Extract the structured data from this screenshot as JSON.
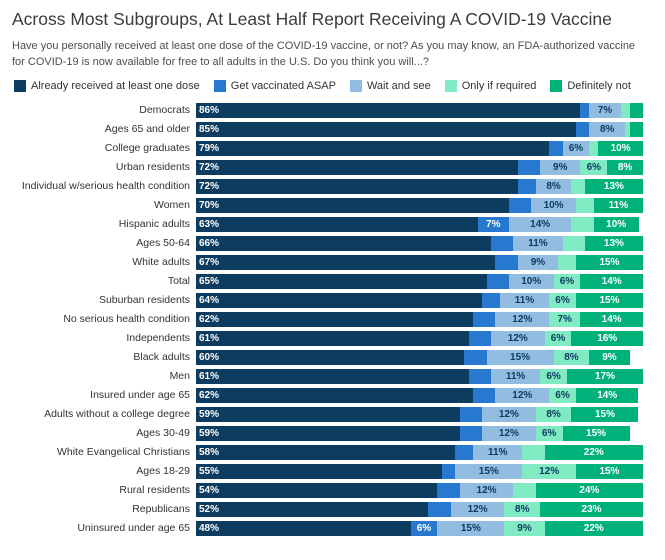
{
  "header": {
    "title": "Across Most Subgroups, At Least Half Report Receiving A COVID-19 Vaccine",
    "subtitle": "Have you personally received at least one dose of the COVID-19 vaccine, or not? As you may know, an FDA-authorized vaccine for COVID-19 is now available for free to all adults in the U.S. Do you think you will...?"
  },
  "chart_data": {
    "type": "bar",
    "orientation": "horizontal",
    "stacked": true,
    "value_format": "percent",
    "xlim": [
      0,
      100
    ],
    "grid": false,
    "legend_position": "top",
    "label_threshold": 6,
    "categories": [
      "Democrats",
      "Ages 65 and older",
      "College graduates",
      "Urban residents",
      "Individual w/serious health condition",
      "Women",
      "Hispanic adults",
      "Ages 50-64",
      "White adults",
      "Total",
      "Suburban residents",
      "No serious health condition",
      "Independents",
      "Black adults",
      "Men",
      "Insured under age 65",
      "Adults without a college degree",
      "Ages 30-49",
      "White Evangelical Christians",
      "Ages 18-29",
      "Rural residents",
      "Republicans",
      "Uninsured under age 65"
    ],
    "series": [
      {
        "name": "Already received at least one dose",
        "color": "#0c3c60",
        "text_color": "#ffffff",
        "values": [
          86,
          85,
          79,
          72,
          72,
          70,
          63,
          66,
          67,
          65,
          64,
          62,
          61,
          60,
          61,
          62,
          59,
          59,
          58,
          55,
          54,
          52,
          48
        ]
      },
      {
        "name": "Get vaccinated ASAP",
        "color": "#2779cf",
        "text_color": "#ffffff",
        "values": [
          2,
          3,
          3,
          5,
          4,
          5,
          7,
          5,
          5,
          5,
          4,
          5,
          5,
          5,
          5,
          5,
          5,
          5,
          4,
          3,
          5,
          5,
          6
        ]
      },
      {
        "name": "Wait and see",
        "color": "#92bce0",
        "text_color": "#0c3c60",
        "values": [
          7,
          8,
          6,
          9,
          8,
          10,
          14,
          11,
          9,
          10,
          11,
          12,
          12,
          15,
          11,
          12,
          12,
          12,
          11,
          15,
          12,
          12,
          15
        ]
      },
      {
        "name": "Only if required",
        "color": "#80eac2",
        "text_color": "#0c3c60",
        "values": [
          2,
          1,
          2,
          6,
          3,
          4,
          5,
          5,
          4,
          6,
          6,
          7,
          6,
          8,
          6,
          6,
          8,
          6,
          5,
          12,
          5,
          8,
          9
        ]
      },
      {
        "name": "Definitely not",
        "color": "#00b179",
        "text_color": "#ffffff",
        "values": [
          3,
          3,
          10,
          8,
          13,
          11,
          10,
          13,
          15,
          14,
          15,
          14,
          16,
          9,
          17,
          14,
          15,
          15,
          22,
          15,
          24,
          23,
          22
        ]
      }
    ]
  }
}
